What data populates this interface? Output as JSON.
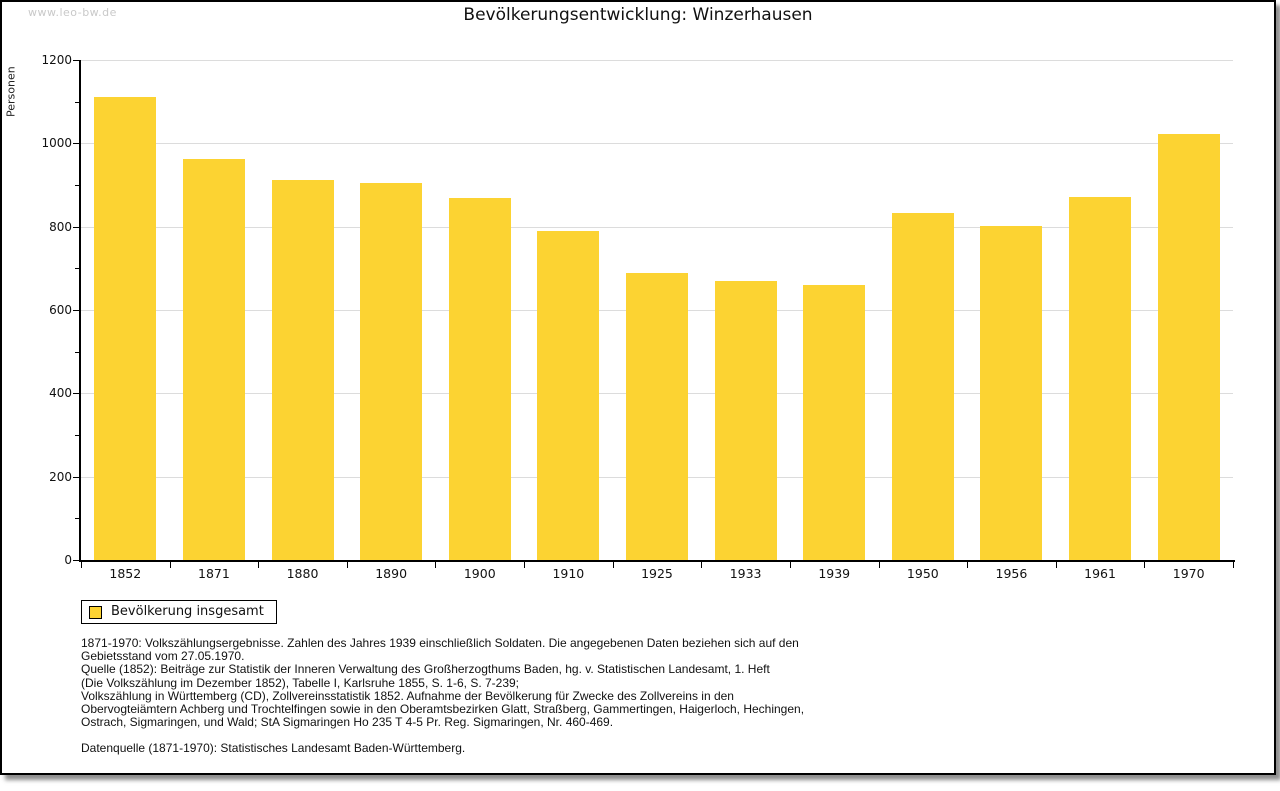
{
  "watermark": "www.leo-bw.de",
  "title": "Bevölkerungsentwicklung: Winzerhausen",
  "y_axis_title": "Personen",
  "colors": {
    "bar": "#FCD332",
    "grid": "#DCDCDC",
    "axis": "#000000",
    "watermark": "#C9C9C9"
  },
  "chart_data": {
    "type": "bar",
    "title": "Bevölkerungsentwicklung: Winzerhausen",
    "xlabel": "",
    "ylabel": "Personen",
    "categories": [
      "1852",
      "1871",
      "1880",
      "1890",
      "1900",
      "1910",
      "1925",
      "1933",
      "1939",
      "1950",
      "1956",
      "1961",
      "1970"
    ],
    "values": [
      1110,
      963,
      912,
      905,
      868,
      790,
      688,
      669,
      661,
      832,
      801,
      872,
      1022
    ],
    "series_name": "Bevölkerung insgesamt",
    "ylim": [
      0,
      1200
    ],
    "ytick_step": 200,
    "grid": true,
    "bar_color": "#FCD332",
    "legend_position": "bottom-left"
  },
  "legend": {
    "label": "Bevölkerung insgesamt"
  },
  "footer": {
    "lines": [
      "1871-1970: Volkszählungsergebnisse. Zahlen des Jahres 1939 einschließlich Soldaten. Die angegebenen Daten beziehen sich auf den",
      "Gebietsstand vom 27.05.1970.",
      "Quelle (1852): Beiträge zur Statistik der Inneren Verwaltung des Großherzogthums Baden, hg. v. Statistischen Landesamt, 1. Heft",
      "(Die Volkszählung im Dezember 1852), Tabelle I, Karlsruhe 1855, S. 1-6, S. 7-239;",
      "Volkszählung in Württemberg (CD), Zollvereinsstatistik 1852. Aufnahme der Bevölkerung für Zwecke des Zollvereins in den",
      "Obervogteiämtern Achberg und Trochtelfingen sowie in den Oberamtsbezirken Glatt, Straßberg, Gammertingen, Haigerloch, Hechingen,",
      "Ostrach, Sigmaringen, und Wald; StA Sigmaringen Ho 235 T 4-5 Pr. Reg. Sigmaringen, Nr. 460-469."
    ],
    "datasource": "Datenquelle (1871-1970): Statistisches Landesamt Baden-Württemberg."
  }
}
